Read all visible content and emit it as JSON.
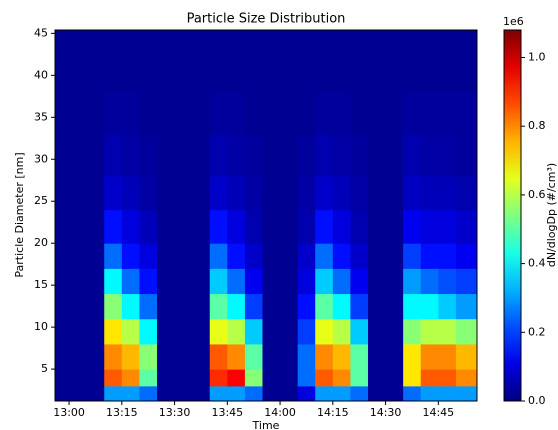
{
  "chart_data": {
    "type": "heatmap",
    "title": "Particle Size Distribution",
    "x_label": "Time",
    "y_label": "Particle Diameter [nm]",
    "colorbar_label": "dN/dlogDp (#/cm³)",
    "colorbar_offset": "1e6",
    "colormap": "jet",
    "x": [
      "12:56",
      "13:05",
      "13:10",
      "13:15",
      "13:20",
      "13:25",
      "13:30",
      "13:35",
      "13:40",
      "13:45",
      "13:50",
      "13:55",
      "14:00",
      "14:05",
      "14:10",
      "14:15",
      "14:20",
      "14:25",
      "14:30",
      "14:35",
      "14:40",
      "14:45",
      "14:50",
      "14:56"
    ],
    "y": [
      1.2,
      3,
      5,
      8,
      11,
      14,
      17,
      20,
      24,
      28,
      33,
      38,
      45.4
    ],
    "z": [
      [
        0.02,
        0.02,
        0.3,
        0.3,
        0.25,
        0.02,
        0.02,
        0.02,
        0.3,
        0.3,
        0.25,
        0.02,
        0.02,
        0.1,
        0.3,
        0.3,
        0.25,
        0.02,
        0.02,
        0.25,
        0.3,
        0.3,
        0.3
      ],
      [
        0.02,
        0.02,
        0.85,
        0.8,
        0.5,
        0.02,
        0.02,
        0.02,
        0.9,
        0.95,
        0.55,
        0.02,
        0.02,
        0.25,
        0.85,
        0.8,
        0.5,
        0.02,
        0.02,
        0.7,
        0.85,
        0.85,
        0.8
      ],
      [
        0.02,
        0.02,
        0.8,
        0.75,
        0.55,
        0.02,
        0.02,
        0.02,
        0.85,
        0.8,
        0.5,
        0.02,
        0.02,
        0.25,
        0.8,
        0.75,
        0.5,
        0.02,
        0.02,
        0.7,
        0.8,
        0.8,
        0.75
      ],
      [
        0.02,
        0.02,
        0.7,
        0.6,
        0.4,
        0.02,
        0.02,
        0.02,
        0.65,
        0.6,
        0.35,
        0.02,
        0.02,
        0.2,
        0.65,
        0.6,
        0.35,
        0.02,
        0.02,
        0.55,
        0.6,
        0.6,
        0.55
      ],
      [
        0.02,
        0.02,
        0.55,
        0.4,
        0.25,
        0.02,
        0.02,
        0.02,
        0.5,
        0.4,
        0.2,
        0.02,
        0.02,
        0.15,
        0.5,
        0.4,
        0.2,
        0.02,
        0.02,
        0.4,
        0.4,
        0.35,
        0.3
      ],
      [
        0.02,
        0.02,
        0.4,
        0.25,
        0.15,
        0.02,
        0.02,
        0.02,
        0.35,
        0.25,
        0.12,
        0.02,
        0.02,
        0.1,
        0.35,
        0.25,
        0.12,
        0.02,
        0.02,
        0.3,
        0.25,
        0.22,
        0.2
      ],
      [
        0.02,
        0.02,
        0.25,
        0.15,
        0.1,
        0.02,
        0.02,
        0.02,
        0.25,
        0.15,
        0.08,
        0.02,
        0.02,
        0.08,
        0.25,
        0.15,
        0.08,
        0.02,
        0.02,
        0.2,
        0.15,
        0.15,
        0.12
      ],
      [
        0.02,
        0.02,
        0.15,
        0.1,
        0.06,
        0.02,
        0.02,
        0.02,
        0.15,
        0.1,
        0.05,
        0.02,
        0.02,
        0.05,
        0.15,
        0.1,
        0.05,
        0.02,
        0.02,
        0.12,
        0.1,
        0.1,
        0.08
      ],
      [
        0.02,
        0.02,
        0.08,
        0.06,
        0.04,
        0.02,
        0.02,
        0.02,
        0.08,
        0.06,
        0.04,
        0.02,
        0.02,
        0.04,
        0.08,
        0.06,
        0.04,
        0.02,
        0.02,
        0.07,
        0.06,
        0.06,
        0.05
      ],
      [
        0.02,
        0.02,
        0.05,
        0.04,
        0.03,
        0.02,
        0.02,
        0.02,
        0.05,
        0.04,
        0.03,
        0.02,
        0.02,
        0.03,
        0.05,
        0.04,
        0.03,
        0.02,
        0.02,
        0.05,
        0.04,
        0.04,
        0.03
      ],
      [
        0.02,
        0.02,
        0.03,
        0.03,
        0.02,
        0.02,
        0.02,
        0.02,
        0.03,
        0.03,
        0.02,
        0.02,
        0.02,
        0.02,
        0.03,
        0.03,
        0.02,
        0.02,
        0.02,
        0.03,
        0.03,
        0.03,
        0.03
      ],
      [
        0.02,
        0.02,
        0.02,
        0.02,
        0.02,
        0.02,
        0.02,
        0.02,
        0.02,
        0.02,
        0.02,
        0.02,
        0.02,
        0.02,
        0.02,
        0.02,
        0.02,
        0.02,
        0.02,
        0.02,
        0.02,
        0.02,
        0.02
      ]
    ],
    "xlim": [
      "12:56",
      "14:56"
    ],
    "xticks": [
      "13:00",
      "13:15",
      "13:30",
      "13:45",
      "14:00",
      "14:15",
      "14:30",
      "14:45"
    ],
    "ylim": [
      1.2,
      45.4
    ],
    "yticks": [
      5,
      10,
      15,
      20,
      25,
      30,
      35,
      40,
      45
    ],
    "clim": [
      0,
      1.08
    ],
    "cticks": [
      {
        "value": 0,
        "label": "0.0"
      },
      0.2,
      0.4,
      0.6,
      0.8,
      {
        "value": 1,
        "label": "1.0"
      }
    ]
  }
}
